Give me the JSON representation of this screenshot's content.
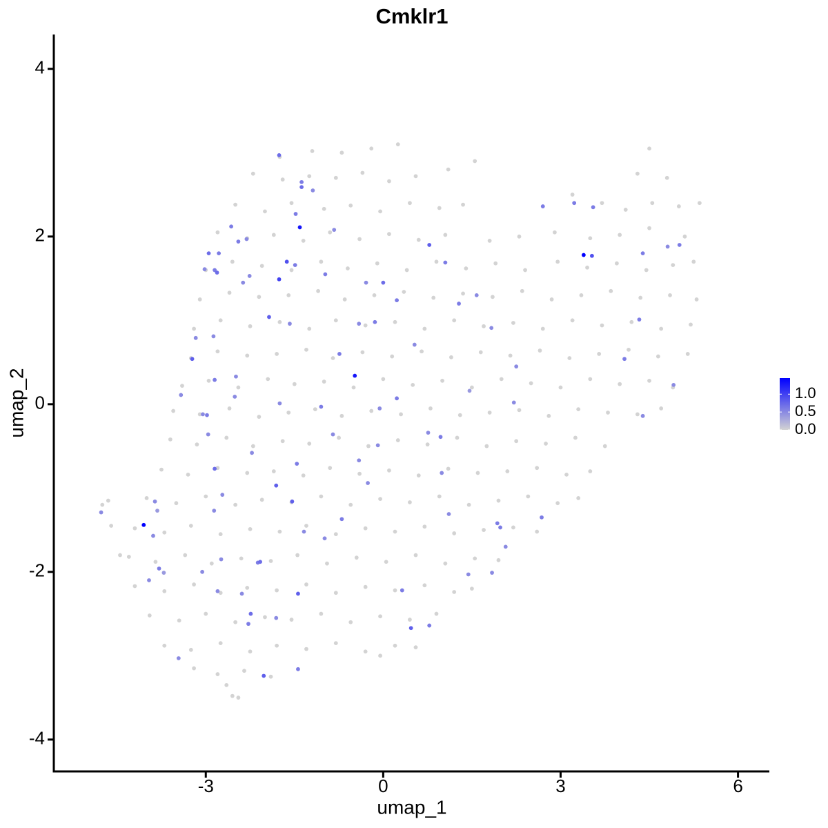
{
  "chart_data": {
    "type": "scatter",
    "title": "Cmklr1",
    "x_label": "umap_1",
    "y_label": "umap_2",
    "xlim": [
      -5.57,
      6.53
    ],
    "ylim": [
      -4.38,
      4.41
    ],
    "xticks": [
      -3,
      0,
      3,
      6
    ],
    "yticks": [
      -4,
      -2,
      0,
      2,
      4
    ],
    "color_low": "#d3d3d3",
    "color_high": "#0000ff",
    "colorbar_lim": [
      0,
      1.45
    ],
    "colorbar_ticks": [
      {
        "value": 0,
        "label": "0.0"
      },
      0.5,
      {
        "value": 1,
        "label": "1.0"
      }
    ],
    "x": [
      -1.75,
      -1.2,
      -0.7,
      -0.2,
      0.25,
      4.5,
      -2.2,
      -1.7,
      -1.25,
      -0.8,
      -0.35,
      0.1,
      0.55,
      1.1,
      4.3,
      4.8,
      -2.5,
      -2.0,
      -1.55,
      -1.0,
      -0.55,
      -0.05,
      0.45,
      0.95,
      1.35,
      3.2,
      3.7,
      4.1,
      4.55,
      5.0,
      5.35,
      -2.8,
      -2.3,
      -1.85,
      -1.35,
      -0.9,
      -0.4,
      0.1,
      0.6,
      1.05,
      1.8,
      2.3,
      2.9,
      3.5,
      4.0,
      4.5,
      5.1,
      -3.0,
      -2.55,
      -2.05,
      -1.55,
      -1.05,
      -0.6,
      -0.1,
      0.4,
      0.9,
      1.4,
      1.9,
      2.4,
      2.95,
      3.45,
      3.95,
      4.45,
      4.9,
      5.25,
      -3.1,
      -2.6,
      -2.1,
      -1.6,
      -1.1,
      -0.65,
      -0.15,
      0.35,
      0.85,
      1.35,
      1.85,
      2.35,
      2.85,
      3.35,
      3.85,
      4.35,
      4.85,
      5.3,
      -3.2,
      -2.75,
      -2.25,
      -1.75,
      -1.25,
      -0.8,
      -0.3,
      0.2,
      0.7,
      1.2,
      1.7,
      2.2,
      2.7,
      3.2,
      3.7,
      4.2,
      4.7,
      5.2,
      -3.25,
      -2.8,
      -2.3,
      -1.8,
      -1.3,
      -0.85,
      -0.35,
      0.15,
      0.65,
      1.15,
      1.65,
      2.15,
      2.65,
      3.15,
      3.65,
      4.15,
      4.65,
      5.15,
      -3.4,
      -2.95,
      -2.45,
      -1.95,
      -1.5,
      -1.0,
      -0.5,
      0.0,
      0.5,
      1.0,
      1.5,
      2.0,
      2.5,
      3.0,
      3.5,
      4.0,
      4.5,
      4.9,
      -3.55,
      -3.1,
      -2.6,
      -2.1,
      -1.6,
      -1.15,
      -0.7,
      -0.2,
      0.3,
      0.8,
      1.3,
      1.8,
      2.3,
      2.8,
      3.3,
      3.8,
      4.3,
      4.7,
      -3.6,
      -3.15,
      -2.65,
      -2.2,
      -1.7,
      -1.25,
      -0.75,
      -0.25,
      0.25,
      0.75,
      1.25,
      1.75,
      2.25,
      2.75,
      3.25,
      3.75,
      -3.75,
      -3.3,
      -2.8,
      -2.3,
      -1.85,
      -1.35,
      -0.9,
      -0.4,
      0.1,
      0.6,
      1.1,
      1.6,
      2.1,
      2.6,
      3.1,
      3.5,
      -4.0,
      -3.5,
      -3.0,
      -2.5,
      -2.05,
      -1.55,
      -1.05,
      -0.55,
      -0.05,
      0.45,
      0.95,
      1.45,
      1.95,
      2.45,
      2.95,
      3.3,
      -4.2,
      -3.7,
      -3.25,
      -2.75,
      -2.25,
      -1.75,
      -1.3,
      -0.8,
      -0.3,
      0.2,
      0.7,
      1.2,
      1.7,
      2.2,
      2.6,
      -4.3,
      -3.85,
      -3.35,
      -2.9,
      -2.4,
      -1.9,
      -1.45,
      -0.95,
      -0.45,
      0.05,
      0.55,
      1.05,
      1.55,
      1.95,
      -4.2,
      -3.7,
      -3.2,
      -2.75,
      -2.3,
      -1.8,
      -1.3,
      -0.8,
      -0.3,
      0.2,
      0.7,
      1.2,
      1.5,
      -3.95,
      -3.45,
      -3.0,
      -2.5,
      -2.0,
      -1.55,
      -1.05,
      -0.55,
      -0.05,
      0.45,
      0.9,
      -3.7,
      -3.25,
      -2.75,
      -2.25,
      -1.8,
      -1.3,
      -0.8,
      -0.3,
      0.2,
      0.55,
      -3.2,
      -2.8,
      -2.35,
      -1.9,
      -0.05,
      -2.55,
      -2.45,
      -2.65,
      -4.75,
      -4.65,
      -4.6,
      -4.45,
      1.55,
      -4.05,
      -4.77,
      -3.82,
      -3.86,
      -3.89,
      -3.79,
      -3.96,
      -3.46,
      -3.71,
      -3.06,
      -2.8,
      -2.24,
      -2.28,
      -2.02,
      -1.44,
      -1.44,
      -2.12,
      -2.08,
      -2.74,
      -1.81,
      -1.54,
      -1.46,
      -2.22,
      -2.85,
      -2.72,
      -2.96,
      -2.98,
      -3.05,
      -2.85,
      -2.49,
      -3.23,
      -3.42,
      -3.17,
      -2.87,
      -2.85,
      -2.95,
      -2.78,
      -2.81,
      -3.02,
      -2.57,
      -2.45,
      -2.31,
      -2.26,
      -2.37,
      -1.76,
      -1.63,
      -1.49,
      -1.41,
      -1.38,
      -1.38,
      -1.19,
      -1.48,
      -1.76,
      -0.98,
      -0.83,
      -0.48,
      -0.74,
      -0.14,
      0,
      -0.29,
      0.78,
      1.05,
      1.28,
      1.58,
      1.83,
      2.25,
      2.21,
      1.46,
      0.97,
      0.76,
      0.23,
      -0.06,
      -0.09,
      -0.41,
      -0.7,
      0.32,
      0.47,
      0.78,
      1.44,
      1.84,
      1.93,
      1.98,
      2.07,
      2.68,
      2.7,
      3.23,
      3.39,
      3.53,
      3.55,
      4.39,
      4.33,
      4.08,
      4.39,
      4.91,
      5.01,
      4.81,
      -1.81,
      -2.51,
      -1.75,
      -1.05,
      -0.85,
      -0.26,
      0.53,
      0.23,
      -1.58,
      -1.93,
      -0.41,
      -2.86,
      -2.39,
      -1.34,
      -0.99,
      1.11,
      0.99
    ],
    "y": [
      2.95,
      3.02,
      3.0,
      3.05,
      3.1,
      3.05,
      2.75,
      2.68,
      2.72,
      2.7,
      2.76,
      2.66,
      2.72,
      2.8,
      2.75,
      2.7,
      2.38,
      2.3,
      2.4,
      2.33,
      2.37,
      2.3,
      2.4,
      2.34,
      2.38,
      2.5,
      2.4,
      2.32,
      2.4,
      2.36,
      2.4,
      2.05,
      1.98,
      2.02,
      1.95,
      2.05,
      1.97,
      2.03,
      1.96,
      2.02,
      1.95,
      2.0,
      2.05,
      1.98,
      2.02,
      2.1,
      2.0,
      1.6,
      1.7,
      1.65,
      1.6,
      1.7,
      1.62,
      1.68,
      1.6,
      1.7,
      1.62,
      1.68,
      1.6,
      1.7,
      1.63,
      1.68,
      1.6,
      1.66,
      1.7,
      1.25,
      1.33,
      1.28,
      1.3,
      1.35,
      1.25,
      1.3,
      1.34,
      1.27,
      1.32,
      1.28,
      1.35,
      1.25,
      1.3,
      1.35,
      1.27,
      1.3,
      1.25,
      0.9,
      1.0,
      0.93,
      0.98,
      0.9,
      1.0,
      0.94,
      0.98,
      0.9,
      1.0,
      0.93,
      0.97,
      0.9,
      1.0,
      0.94,
      0.98,
      0.9,
      0.95,
      0.55,
      0.63,
      0.58,
      0.6,
      0.65,
      0.55,
      0.62,
      0.57,
      0.63,
      0.56,
      0.62,
      0.58,
      0.64,
      0.55,
      0.6,
      0.65,
      0.57,
      0.6,
      0.22,
      0.28,
      0.2,
      0.3,
      0.24,
      0.27,
      0.2,
      0.3,
      0.23,
      0.28,
      0.2,
      0.3,
      0.25,
      0.2,
      0.3,
      0.24,
      0.28,
      0.2,
      -0.08,
      -0.12,
      -0.05,
      -0.15,
      -0.1,
      -0.06,
      -0.14,
      -0.08,
      -0.12,
      -0.05,
      -0.13,
      -0.1,
      -0.07,
      -0.14,
      -0.06,
      -0.1,
      -0.12,
      -0.05,
      -0.42,
      -0.48,
      -0.4,
      -0.5,
      -0.44,
      -0.47,
      -0.4,
      -0.5,
      -0.43,
      -0.48,
      -0.4,
      -0.5,
      -0.44,
      -0.47,
      -0.4,
      -0.5,
      -0.78,
      -0.84,
      -0.76,
      -0.82,
      -0.8,
      -0.85,
      -0.76,
      -0.83,
      -0.79,
      -0.85,
      -0.77,
      -0.82,
      -0.8,
      -0.76,
      -0.84,
      -0.8,
      -1.12,
      -1.18,
      -1.1,
      -1.2,
      -1.14,
      -1.17,
      -1.1,
      -1.2,
      -1.13,
      -1.17,
      -1.1,
      -1.2,
      -1.15,
      -1.1,
      -1.18,
      -1.12,
      -1.48,
      -1.53,
      -1.45,
      -1.55,
      -1.49,
      -1.52,
      -1.45,
      -1.55,
      -1.48,
      -1.52,
      -1.46,
      -1.54,
      -1.5,
      -1.47,
      -1.52,
      -1.82,
      -1.88,
      -1.8,
      -1.9,
      -1.84,
      -1.87,
      -1.8,
      -1.9,
      -1.83,
      -1.88,
      -1.8,
      -1.9,
      -1.84,
      -1.86,
      -2.17,
      -2.23,
      -2.15,
      -2.25,
      -2.19,
      -2.22,
      -2.15,
      -2.25,
      -2.18,
      -2.22,
      -2.16,
      -2.24,
      -2.2,
      -2.52,
      -2.58,
      -2.5,
      -2.6,
      -2.54,
      -2.57,
      -2.5,
      -2.6,
      -2.53,
      -2.57,
      -2.5,
      -2.88,
      -2.93,
      -2.85,
      -2.95,
      -2.88,
      -2.92,
      -2.85,
      -2.95,
      -2.88,
      -2.9,
      -3.15,
      -3.22,
      -3.18,
      -3.25,
      -3.0,
      -3.48,
      -3.5,
      -3.35,
      -1.2,
      -1.15,
      -1.45,
      -1.8,
      2.9,
      -1.44,
      -1.29,
      -1.27,
      -1.16,
      -1.57,
      -1.96,
      -2.1,
      -3.03,
      -2.01,
      -2.0,
      -2.23,
      -2.5,
      -2.62,
      -3.24,
      -3.16,
      -2.26,
      -1.89,
      -1.88,
      -1.85,
      -0.97,
      -1.16,
      -0.71,
      -0.58,
      -0.77,
      -1.08,
      -0.36,
      -0.13,
      -0.12,
      0.29,
      0.33,
      0.54,
      0.11,
      0.79,
      0.81,
      1.6,
      1.8,
      1.8,
      1.57,
      1.61,
      2.12,
      1.94,
      1.97,
      1.53,
      1.45,
      1.49,
      1.7,
      1.66,
      2.11,
      2.59,
      2.65,
      2.55,
      2.27,
      2.97,
      1.55,
      2.08,
      0.34,
      0.6,
      0.98,
      1.45,
      1.45,
      1.9,
      1.69,
      1.2,
      1.3,
      0.91,
      0.45,
      0.02,
      0.16,
      -0.39,
      -0.34,
      0.07,
      -0.05,
      -0.49,
      -0.67,
      -1.37,
      -2.22,
      -2.67,
      -2.64,
      -2.03,
      -2.01,
      -1.42,
      -1.47,
      -1.7,
      -1.35,
      2.36,
      2.4,
      1.78,
      1.77,
      2.35,
      1.8,
      1.01,
      0.54,
      -0.14,
      0.23,
      1.9,
      1.88,
      -2.55,
      0.09,
      0.01,
      -0.03,
      -0.36,
      -0.94,
      0.71,
      1.24,
      0.96,
      1.04,
      0.96,
      -1.27,
      -2.26,
      -1.52,
      -1.6,
      -1.31,
      -0.82
    ],
    "values": [
      0,
      0,
      0,
      0,
      0,
      0,
      0,
      0,
      0,
      0,
      0,
      0,
      0,
      0,
      0,
      0,
      0,
      0,
      0,
      0,
      0,
      0,
      0,
      0,
      0,
      0,
      0,
      0,
      0,
      0,
      0,
      0,
      0,
      0,
      0,
      0,
      0,
      0,
      0,
      0,
      0,
      0,
      0,
      0,
      0,
      0,
      0,
      0,
      0,
      0,
      0,
      0,
      0,
      0,
      0,
      0,
      0,
      0,
      0,
      0,
      0,
      0,
      0,
      0,
      0,
      0,
      0,
      0,
      0,
      0,
      0,
      0,
      0,
      0,
      0,
      0,
      0,
      0,
      0,
      0,
      0,
      0,
      0,
      0,
      0,
      0,
      0,
      0,
      0,
      0,
      0,
      0,
      0,
      0,
      0,
      0,
      0,
      0,
      0,
      0,
      0,
      0,
      0,
      0,
      0,
      0,
      0,
      0,
      0,
      0,
      0,
      0,
      0,
      0,
      0,
      0,
      0,
      0,
      0,
      0,
      0,
      0,
      0,
      0,
      0,
      0,
      0,
      0,
      0,
      0,
      0,
      0,
      0,
      0,
      0,
      0,
      0,
      0,
      0,
      0,
      0,
      0,
      0,
      0,
      0,
      0,
      0,
      0,
      0,
      0,
      0,
      0,
      0,
      0,
      0,
      0,
      0,
      0,
      0,
      0,
      0,
      0,
      0,
      0,
      0,
      0,
      0,
      0,
      0,
      0,
      0,
      0,
      0,
      0,
      0,
      0,
      0,
      0,
      0,
      0,
      0,
      0,
      0,
      0,
      0,
      0,
      0,
      0,
      0,
      0,
      0,
      0,
      0,
      0,
      0,
      0,
      0,
      0,
      0,
      0,
      0,
      0,
      0,
      0,
      0,
      0,
      0,
      0,
      0,
      0,
      0,
      0,
      0,
      0,
      0,
      0,
      0,
      0,
      0,
      0,
      0,
      0,
      0,
      0,
      0,
      0,
      0,
      0,
      0,
      0,
      0,
      0,
      0,
      0,
      0,
      0,
      0,
      0,
      0,
      0,
      0,
      0,
      0,
      0,
      0,
      0,
      0,
      0,
      0,
      0,
      0,
      0,
      0,
      0,
      0,
      0,
      0,
      0,
      0,
      0,
      0,
      0,
      0,
      0,
      0,
      0,
      0,
      0,
      0,
      0,
      0,
      0,
      0,
      0,
      0,
      0,
      0,
      0,
      0,
      1.45,
      0.5,
      0.4,
      0.5,
      0.5,
      0.6,
      0.5,
      0.5,
      0.4,
      0.5,
      0.5,
      0.7,
      0.6,
      0.8,
      0.6,
      0.8,
      0.6,
      0.7,
      0.5,
      0.8,
      0.8,
      0.6,
      0.5,
      0.7,
      0.5,
      0.5,
      0.6,
      0.5,
      0.6,
      0.5,
      0.8,
      0.5,
      0.5,
      0.5,
      0.6,
      0.7,
      0.6,
      0.7,
      0.5,
      0.6,
      0.6,
      0.5,
      0.5,
      0.5,
      1.0,
      0.9,
      0.6,
      1.3,
      0.7,
      0.6,
      0.5,
      0.6,
      0.7,
      0.6,
      0.5,
      1.3,
      0.6,
      0.6,
      0.7,
      0.5,
      0.8,
      0.6,
      0.6,
      0.5,
      0.5,
      0.5,
      0.5,
      0.4,
      0.6,
      0.5,
      0.6,
      0.5,
      0.5,
      0.5,
      0.6,
      0.6,
      0.8,
      0.6,
      0.5,
      0.5,
      0.6,
      0.6,
      0.5,
      0.6,
      0.6,
      0.6,
      1.45,
      0.9,
      0.6,
      0.6,
      0.6,
      0.6,
      0.5,
      0.5,
      0.6,
      0.5,
      0.5,
      0.5,
      0.5,
      0.6,
      0.5,
      0.5,
      0.5,
      0.6,
      0.5,
      0.8,
      0.5,
      0.5,
      0.5,
      0.5,
      0.5,
      0.5,
      0.5
    ]
  }
}
